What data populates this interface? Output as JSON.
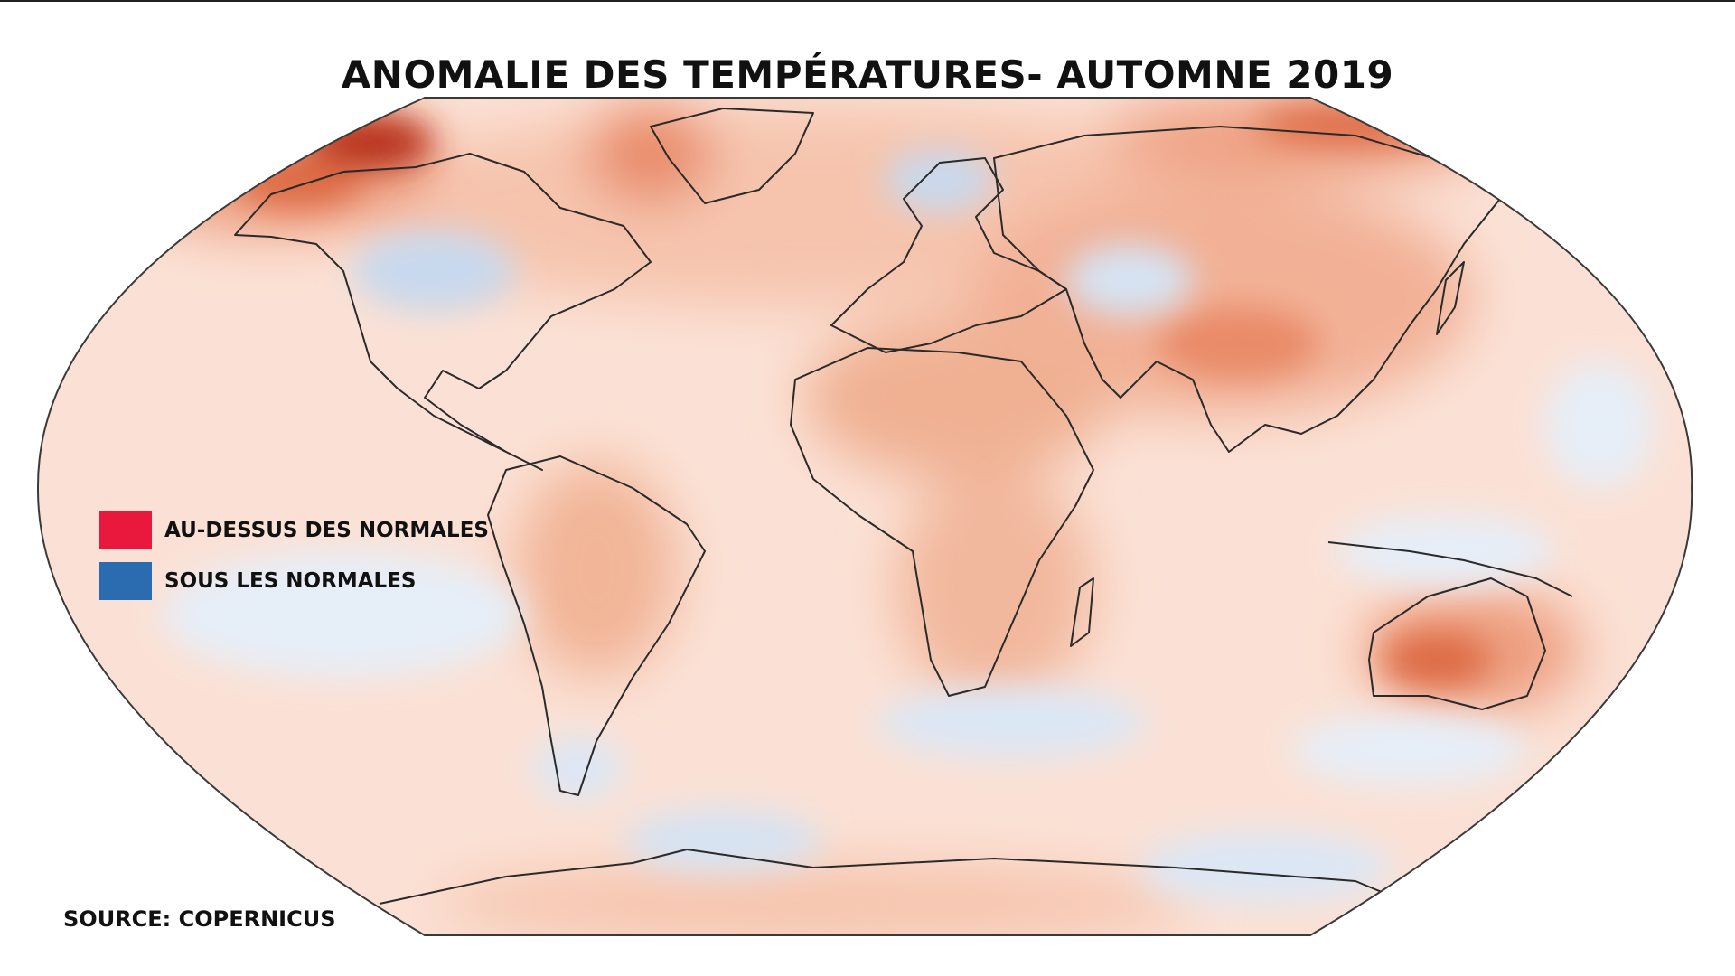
{
  "title": "ANOMALIE DES TEMPÉRATURES- AUTOMNE 2019",
  "legend": {
    "items": [
      {
        "label": "AU-DESSUS DES NORMALES",
        "color": "#e8193c"
      },
      {
        "label": "SOUS LES NORMALES",
        "color": "#2b6cb0"
      }
    ]
  },
  "source": "SOURCE: COPERNICUS",
  "colors": {
    "ocean_base": "#fbe1d5",
    "warm_light": "#f6c4ad",
    "warm_mid": "#ee9f80",
    "warm_strong": "#dd6a44",
    "warm_extreme": "#b8301a",
    "cool_light": "#e6eef8",
    "cool_mid": "#c8d9ee",
    "coastline": "#2a2a2a"
  }
}
